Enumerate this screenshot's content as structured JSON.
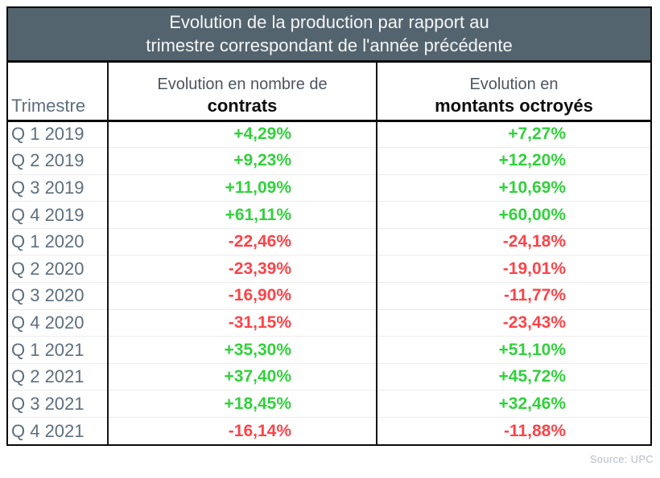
{
  "title": {
    "line1": "Evolution de la production par rapport au",
    "line2": "trimestre correspondant de l'année précédente"
  },
  "columns": {
    "trimestre": "Trimestre",
    "contrats_top": "Evolution en nombre de",
    "contrats_bold": "contrats",
    "montants_top": "Evolution en",
    "montants_bold": "montants octroyés"
  },
  "rows": [
    {
      "trimestre": "Q 1 2019",
      "contrats": "+4,29%",
      "montants": "+7,27%"
    },
    {
      "trimestre": "Q 2 2019",
      "contrats": "+9,23%",
      "montants": "+12,20%"
    },
    {
      "trimestre": "Q 3 2019",
      "contrats": "+11,09%",
      "montants": "+10,69%"
    },
    {
      "trimestre": "Q 4 2019",
      "contrats": "+61,11%",
      "montants": "+60,00%"
    },
    {
      "trimestre": "Q 1 2020",
      "contrats": "-22,46%",
      "montants": "-24,18%"
    },
    {
      "trimestre": "Q 2 2020",
      "contrats": "-23,39%",
      "montants": "-19,01%"
    },
    {
      "trimestre": "Q 3 2020",
      "contrats": "-16,90%",
      "montants": "-11,77%"
    },
    {
      "trimestre": "Q 4 2020",
      "contrats": "-31,15%",
      "montants": "-23,43%"
    },
    {
      "trimestre": "Q 1 2021",
      "contrats": "+35,30%",
      "montants": "+51,10%"
    },
    {
      "trimestre": "Q 2 2021",
      "contrats": "+37,40%",
      "montants": "+45,72%"
    },
    {
      "trimestre": "Q 3 2021",
      "contrats": "+18,45%",
      "montants": "+32,46%"
    },
    {
      "trimestre": "Q 4 2021",
      "contrats": "-16,14%",
      "montants": "-11,88%"
    }
  ],
  "source": "Source: UPC",
  "colors": {
    "positive": "#32d13c",
    "negative": "#fb4449",
    "title_bg": "#54646f",
    "label": "#5d6e7e"
  },
  "chart_data": {
    "type": "table",
    "title": "Evolution de la production par rapport au trimestre correspondant de l'année précédente",
    "categories": [
      "Q 1 2019",
      "Q 2 2019",
      "Q 3 2019",
      "Q 4 2019",
      "Q 1 2020",
      "Q 2 2020",
      "Q 3 2020",
      "Q 4 2020",
      "Q 1 2021",
      "Q 2 2021",
      "Q 3 2021",
      "Q 4 2021"
    ],
    "series": [
      {
        "name": "Evolution en nombre de contrats",
        "values": [
          4.29,
          9.23,
          11.09,
          61.11,
          -22.46,
          -23.39,
          -16.9,
          -31.15,
          35.3,
          37.4,
          18.45,
          -16.14
        ],
        "unit": "%"
      },
      {
        "name": "Evolution en montants octroyés",
        "values": [
          7.27,
          12.2,
          10.69,
          60.0,
          -24.18,
          -19.01,
          -11.77,
          -23.43,
          51.1,
          45.72,
          32.46,
          -11.88
        ],
        "unit": "%"
      }
    ],
    "source": "Source: UPC"
  }
}
